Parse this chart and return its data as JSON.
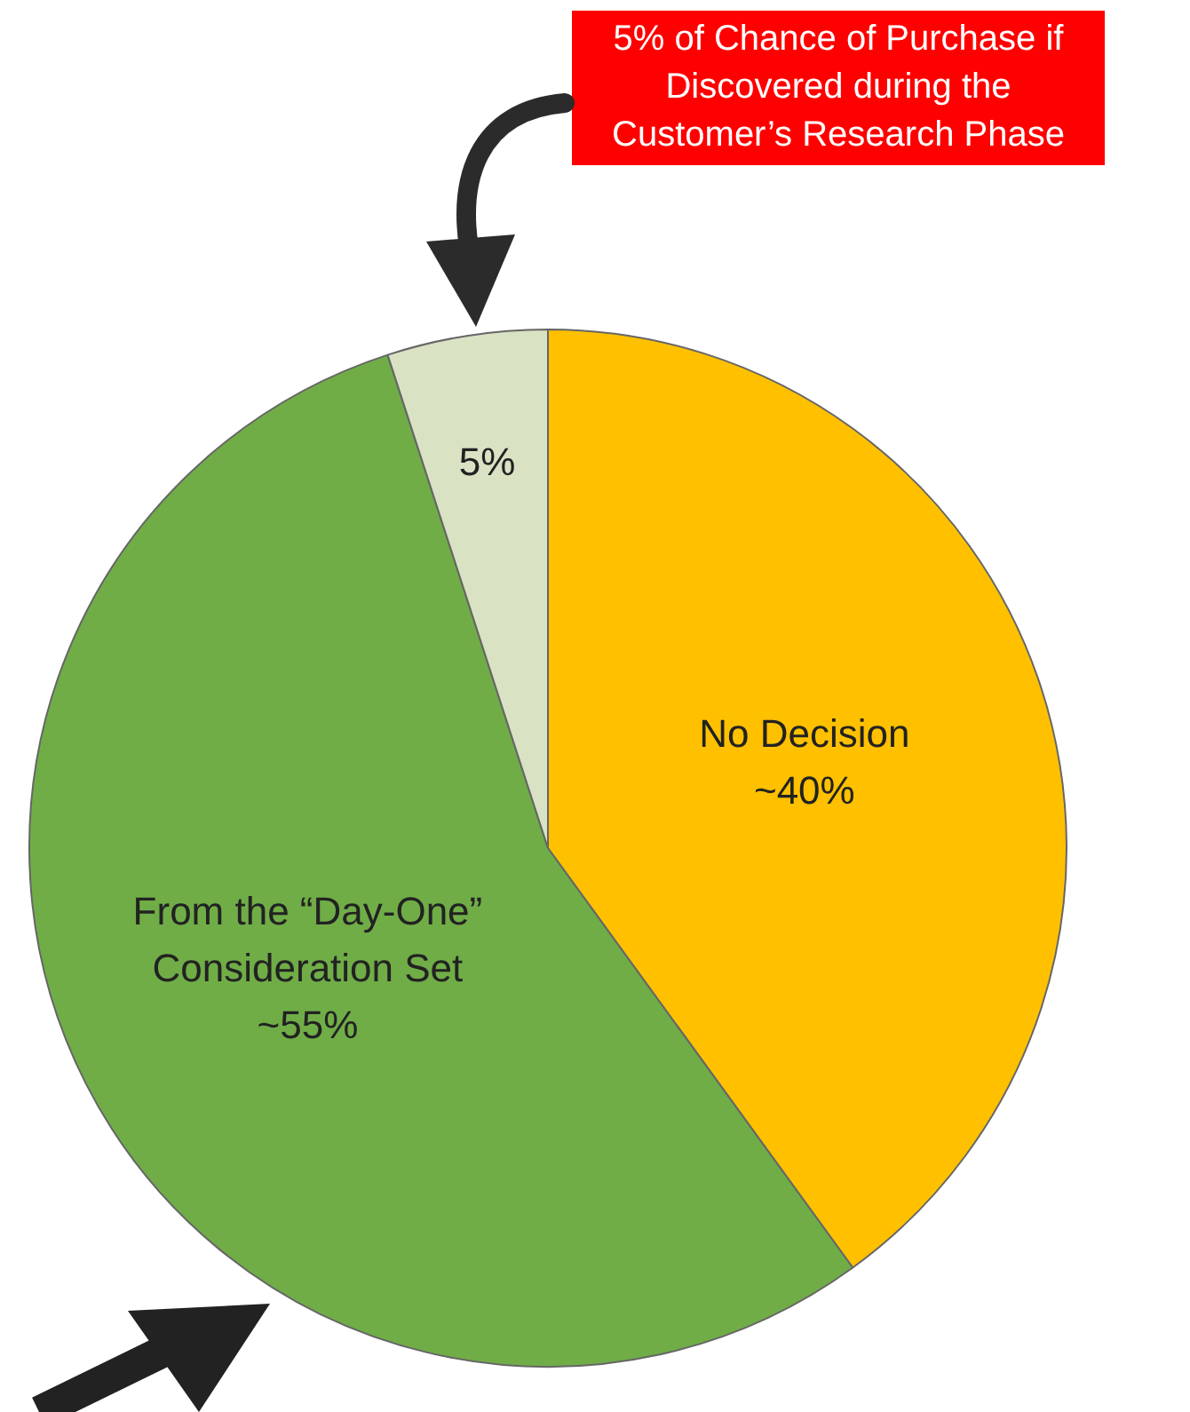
{
  "chart_data": {
    "type": "pie",
    "categories": [
      "No Decision",
      "From the “Day-One” Consideration Set",
      null
    ],
    "values": [
      40,
      55,
      5
    ],
    "colors": [
      "#ffc000",
      "#70ad47",
      "#d9e2c3"
    ],
    "value_labels": [
      "~40%",
      "~55%",
      "5%"
    ],
    "annotations": [
      "5% of Chance of Purchase if Discovered during the Customer’s Research Phase"
    ]
  }
}
